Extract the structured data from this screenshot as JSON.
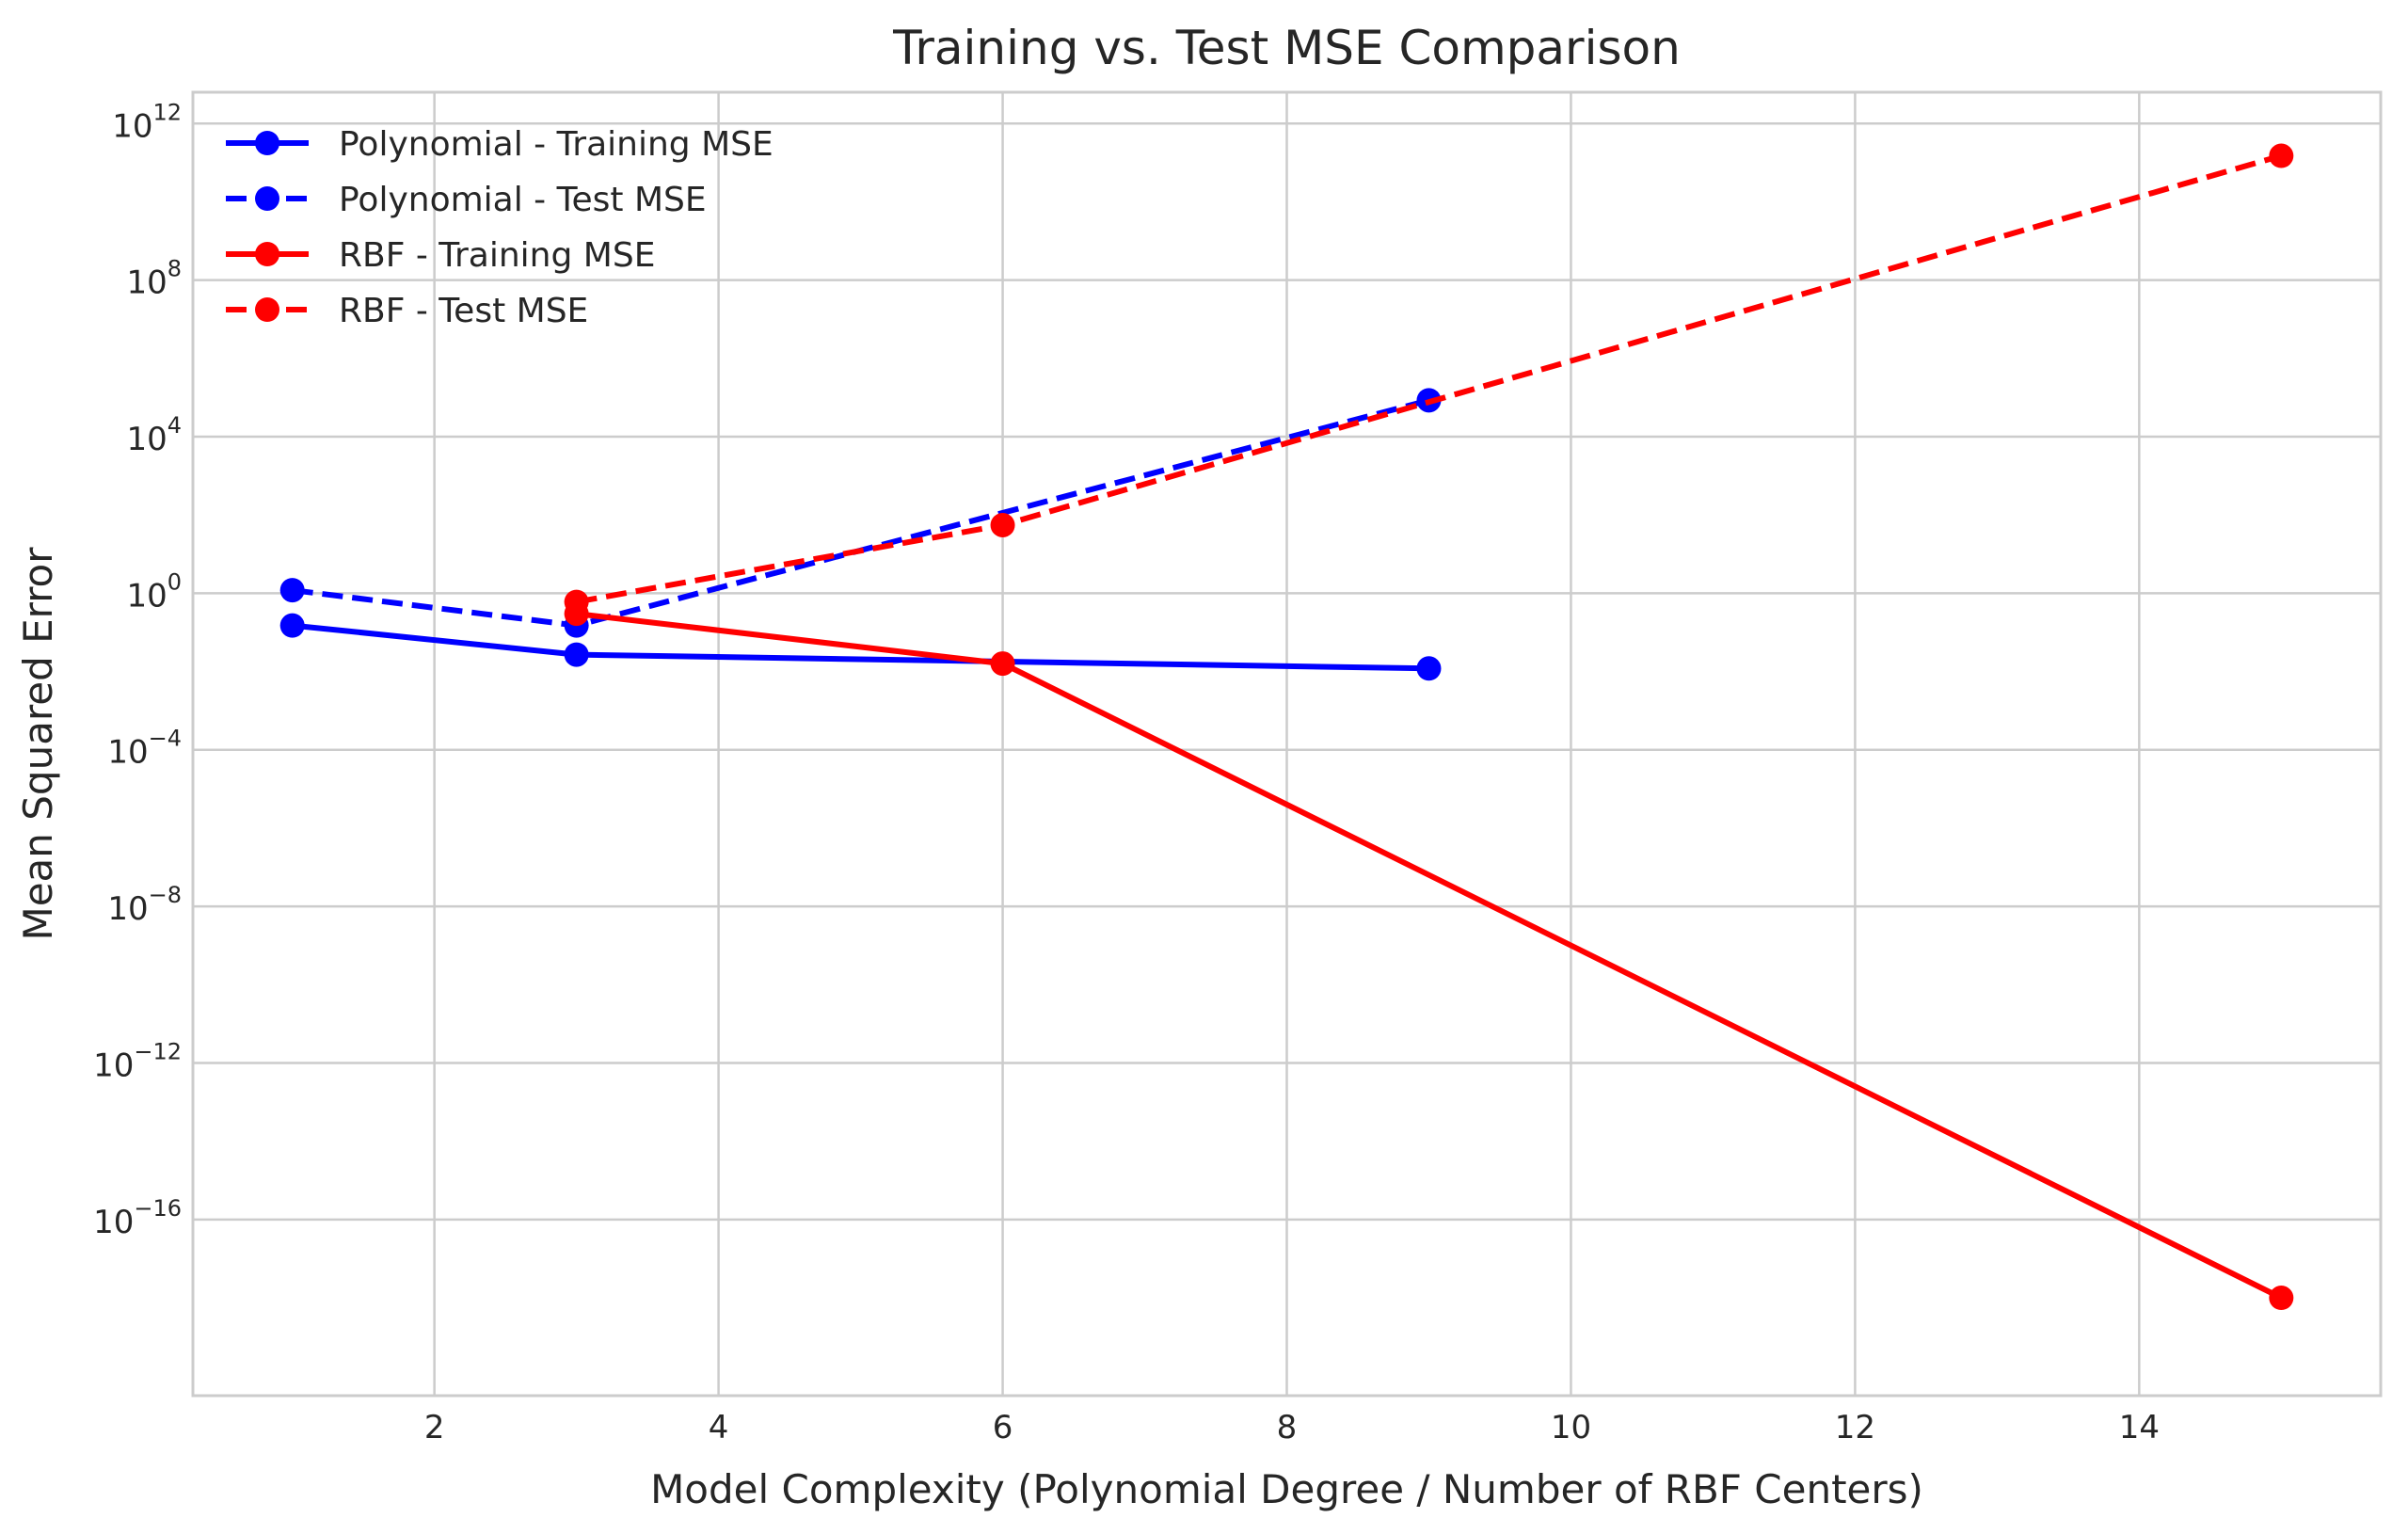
{
  "chart_data": {
    "type": "line",
    "title": "Training vs. Test MSE Comparison",
    "xlabel": "Model Complexity (Polynomial Degree / Number of RBF Centers)",
    "ylabel": "Mean Squared Error",
    "xlim": [
      0.3,
      15.7
    ],
    "xticks": [
      2,
      4,
      6,
      8,
      10,
      12,
      14
    ],
    "yscale": "log",
    "ylim_log10": [
      -20.5,
      12.8
    ],
    "yticks_exponent": [
      -16,
      -12,
      -8,
      -4,
      0,
      4,
      8,
      12
    ],
    "ytick_base": "10",
    "grid": true,
    "legend_position": "top-left",
    "series": [
      {
        "name": "Polynomial - Training MSE",
        "color": "#0000ff",
        "linestyle": "solid",
        "marker": "circle",
        "x": [
          1,
          3,
          9
        ],
        "y": [
          0.15,
          0.027,
          0.012
        ]
      },
      {
        "name": "Polynomial - Test MSE",
        "color": "#0000ff",
        "linestyle": "dashed",
        "marker": "circle",
        "x": [
          1,
          3,
          9
        ],
        "y": [
          1.2,
          0.15,
          85000
        ]
      },
      {
        "name": "RBF - Training MSE",
        "color": "#ff0000",
        "linestyle": "solid",
        "marker": "circle",
        "x": [
          3,
          6,
          15
        ],
        "y": [
          0.3,
          0.016,
          1e-18
        ]
      },
      {
        "name": "RBF - Test MSE",
        "color": "#ff0000",
        "linestyle": "dashed",
        "marker": "circle",
        "x": [
          3,
          6,
          15
        ],
        "y": [
          0.6,
          55,
          150000000000
        ]
      }
    ]
  }
}
